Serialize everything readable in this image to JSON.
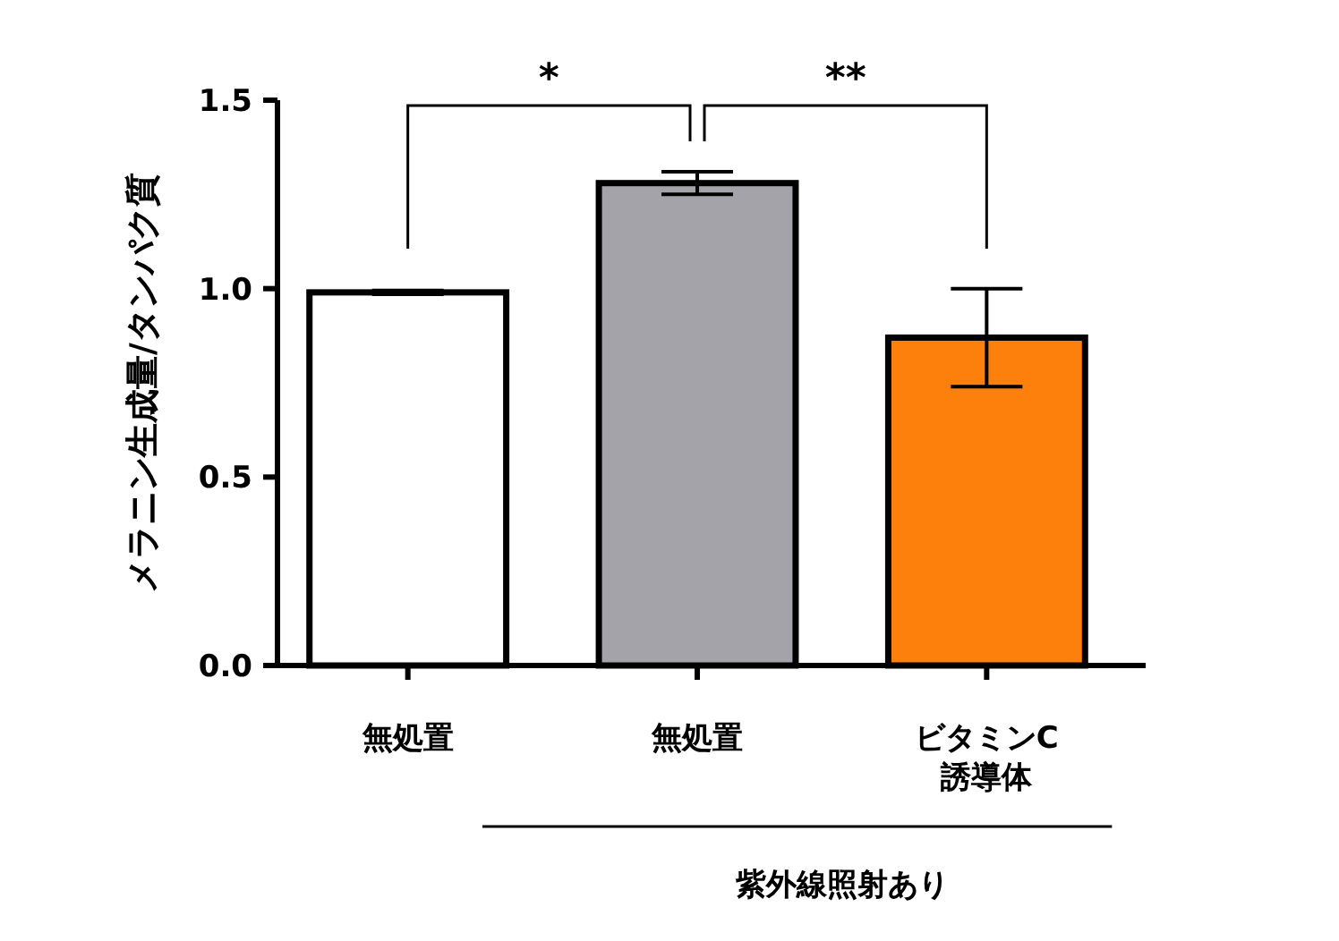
{
  "chart_data": {
    "type": "bar",
    "ylabel": "メラニン生成量/タンパク質",
    "categories": [
      "無処置",
      "無処置",
      "ビタミンC\n誘導体"
    ],
    "values": [
      0.99,
      1.28,
      0.87
    ],
    "errors": [
      0.005,
      0.03,
      0.13
    ],
    "colors": [
      "#ffffff",
      "#a4a3a9",
      "#fd800c"
    ],
    "ylim": [
      0,
      1.5
    ],
    "yticks": [
      {
        "value": 0,
        "label": "0.0"
      },
      {
        "value": 0.5,
        "label": "0.5"
      },
      {
        "value": 1,
        "label": "1.0"
      },
      {
        "value": 1.5,
        "label": "1.5"
      }
    ],
    "grid": false,
    "annotations": [
      "*",
      "**",
      "紫外線照射あり"
    ]
  }
}
